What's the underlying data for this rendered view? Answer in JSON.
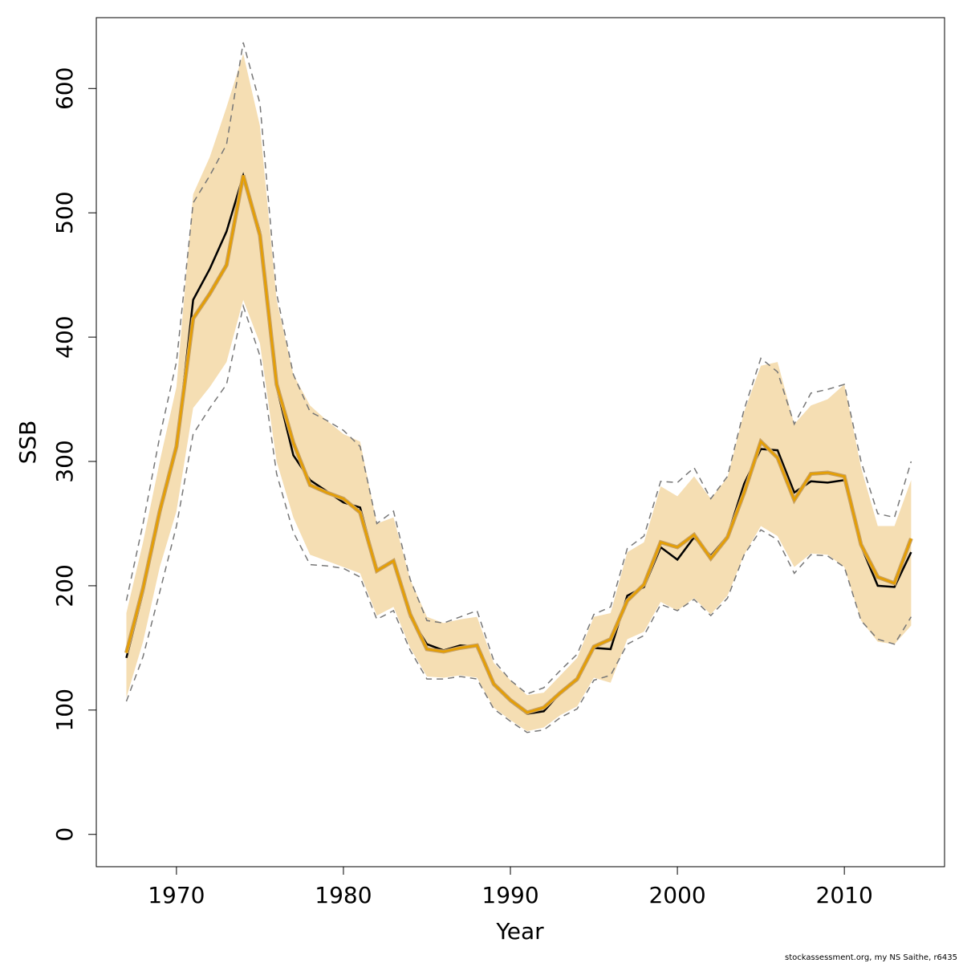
{
  "chart_data": {
    "type": "line",
    "xlabel": "Year",
    "ylabel": "SSB",
    "footnote": "stockassessment.org, my  NS Saithe, r6435",
    "x": [
      1967,
      1968,
      1969,
      1970,
      1971,
      1972,
      1973,
      1974,
      1975,
      1976,
      1977,
      1978,
      1979,
      1980,
      1981,
      1982,
      1983,
      1984,
      1985,
      1986,
      1987,
      1988,
      1989,
      1990,
      1991,
      1992,
      1993,
      1994,
      1995,
      1996,
      1997,
      1998,
      1999,
      2000,
      2001,
      2002,
      2003,
      2004,
      2005,
      2006,
      2007,
      2008,
      2009,
      2010,
      2011,
      2012,
      2013,
      2014
    ],
    "band": {
      "color": "#f5deb3",
      "upper": [
        178,
        235,
        300,
        360,
        515,
        545,
        585,
        628,
        570,
        430,
        370,
        345,
        333,
        322,
        316,
        250,
        255,
        205,
        175,
        170,
        173,
        175,
        138,
        124,
        112,
        114,
        128,
        142,
        175,
        178,
        227,
        235,
        280,
        272,
        288,
        270,
        287,
        340,
        377,
        380,
        330,
        345,
        350,
        362,
        295,
        248,
        248,
        285
      ],
      "lower": [
        110,
        155,
        215,
        260,
        343,
        360,
        380,
        430,
        395,
        300,
        255,
        225,
        220,
        215,
        210,
        176,
        183,
        150,
        127,
        126,
        128,
        126,
        102,
        92,
        83,
        86,
        96,
        103,
        126,
        122,
        157,
        163,
        187,
        180,
        190,
        177,
        192,
        225,
        248,
        240,
        215,
        226,
        225,
        215,
        172,
        155,
        153,
        168
      ]
    },
    "series": [
      {
        "color": "#777777",
        "dashed": true,
        "values": [
          188,
          250,
          320,
          380,
          508,
          530,
          555,
          637,
          588,
          435,
          370,
          340,
          333,
          325,
          312,
          250,
          260,
          205,
          172,
          170,
          175,
          180,
          140,
          124,
          113,
          118,
          132,
          145,
          177,
          183,
          230,
          240,
          284,
          283,
          295,
          270,
          288,
          342,
          383,
          372,
          330,
          355,
          358,
          362,
          300,
          258,
          255,
          300
        ]
      },
      {
        "color": "#777777",
        "dashed": true,
        "values": [
          107,
          143,
          195,
          248,
          322,
          343,
          362,
          425,
          385,
          290,
          243,
          217,
          216,
          214,
          207,
          173,
          180,
          148,
          125,
          125,
          127,
          125,
          101,
          91,
          82,
          84,
          94,
          101,
          124,
          128,
          153,
          160,
          185,
          180,
          189,
          176,
          190,
          225,
          245,
          237,
          210,
          225,
          224,
          215,
          172,
          157,
          153,
          175
        ]
      },
      {
        "color": "#000000",
        "values": [
          142,
          195,
          258,
          310,
          430,
          455,
          485,
          530,
          485,
          360,
          305,
          285,
          276,
          267,
          263,
          213,
          219,
          175,
          153,
          148,
          152,
          151,
          120,
          107,
          97,
          99,
          114,
          124,
          150,
          149,
          192,
          199,
          231,
          221,
          239,
          224,
          240,
          282,
          310,
          309,
          275,
          284,
          283,
          285,
          232,
          200,
          199,
          227
        ]
      },
      {
        "color": "#e69f00",
        "outline": "#c8a060",
        "values": [
          146,
          198,
          260,
          312,
          415,
          435,
          458,
          530,
          482,
          362,
          315,
          281,
          275,
          270,
          259,
          212,
          220,
          177,
          149,
          147,
          150,
          152,
          121,
          108,
          98,
          102,
          114,
          125,
          151,
          157,
          188,
          201,
          235,
          231,
          241,
          222,
          239,
          275,
          316,
          303,
          269,
          290,
          291,
          288,
          233,
          207,
          202,
          238
        ]
      }
    ],
    "xlim": [
      1965.2,
      2016
    ],
    "ylim": [
      -26,
      657
    ],
    "xticks": [
      1970,
      1980,
      1990,
      2000,
      2010
    ],
    "yticks": [
      0,
      100,
      200,
      300,
      400,
      500,
      600
    ]
  }
}
